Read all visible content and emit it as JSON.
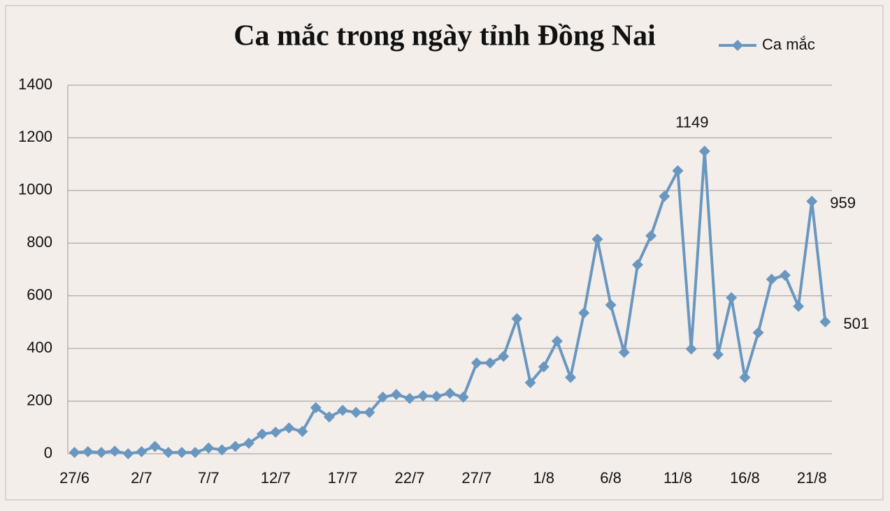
{
  "chart_data": {
    "type": "line",
    "title": "Ca mắc trong ngày tỉnh Đồng Nai",
    "categories": [
      "27/6",
      null,
      null,
      null,
      null,
      "2/7",
      null,
      null,
      null,
      null,
      "7/7",
      null,
      null,
      null,
      null,
      "12/7",
      null,
      null,
      null,
      null,
      "17/7",
      null,
      null,
      null,
      null,
      "22/7",
      null,
      null,
      null,
      null,
      "27/7",
      null,
      null,
      null,
      null,
      "1/8",
      null,
      null,
      null,
      null,
      "6/8",
      null,
      null,
      null,
      null,
      "11/8",
      null,
      null,
      null,
      null,
      "16/8",
      null,
      null,
      null,
      null,
      "21/8",
      null
    ],
    "series": [
      {
        "name": "Ca mắc",
        "color": "#6a97c0",
        "values": [
          5,
          8,
          5,
          10,
          0,
          8,
          28,
          5,
          5,
          5,
          22,
          15,
          28,
          40,
          75,
          82,
          98,
          85,
          175,
          140,
          165,
          157,
          157,
          215,
          225,
          210,
          220,
          218,
          230,
          215,
          345,
          345,
          370,
          513,
          270,
          330,
          428,
          290,
          535,
          815,
          565,
          385,
          718,
          828,
          978,
          1075,
          398,
          1149,
          377,
          593,
          290,
          460,
          663,
          678,
          560,
          959,
          501
        ],
        "value_labels": [
          null,
          null,
          null,
          null,
          null,
          null,
          null,
          null,
          null,
          null,
          null,
          null,
          null,
          null,
          null,
          null,
          null,
          null,
          null,
          null,
          null,
          null,
          null,
          null,
          null,
          null,
          null,
          null,
          null,
          null,
          null,
          null,
          null,
          null,
          null,
          null,
          null,
          null,
          null,
          null,
          null,
          null,
          null,
          null,
          null,
          null,
          null,
          "1149",
          null,
          null,
          null,
          null,
          null,
          null,
          null,
          "959",
          "501"
        ]
      }
    ],
    "ylim": [
      0,
      1400
    ],
    "yticks": [
      0,
      200,
      400,
      600,
      800,
      1000,
      1200,
      1400
    ],
    "grid": true,
    "legend": "top-right"
  }
}
